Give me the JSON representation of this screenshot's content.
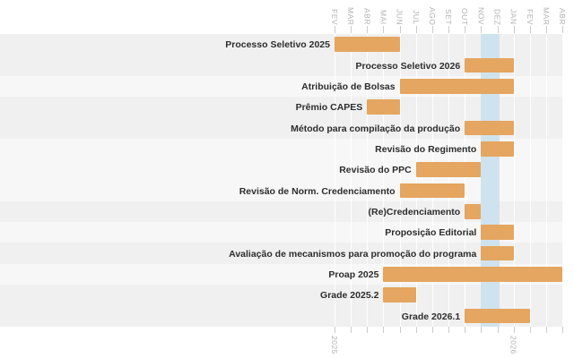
{
  "chart_data": {
    "type": "gantt",
    "title": "",
    "x_axis": {
      "months_top": [
        "FEV",
        "MAR",
        "ABR",
        "MAI",
        "JUN",
        "JUL",
        "AGO",
        "SET",
        "OUT",
        "NOV",
        "DEZ",
        "JAN",
        "FEV",
        "MAR",
        "ABR"
      ],
      "years_bottom": [
        {
          "label": "2025",
          "month_index": 0
        },
        {
          "label": "2026",
          "month_index": 11
        }
      ],
      "range": [
        "FEV 2025",
        "ABR 2026"
      ],
      "grid": true
    },
    "highlight_band": {
      "name": "current-period",
      "start_month_index": 9.0,
      "end_month_index": 10.15,
      "start": "NOV 2025",
      "end": "DEZ 2025"
    },
    "tasks": [
      {
        "label": "Processo Seletivo 2025",
        "start": "FEV 2025",
        "end": "JUN 2025",
        "start_index": 0,
        "end_index": 4,
        "row_shade": "dark"
      },
      {
        "label": "Processo Seletivo 2026",
        "start": "OUT 2025",
        "end": "JAN 2026",
        "start_index": 8,
        "end_index": 11,
        "row_shade": "dark"
      },
      {
        "label": "Atribuição de Bolsas",
        "start": "JUN 2025",
        "end": "JAN 2026",
        "start_index": 4,
        "end_index": 11,
        "row_shade": "light"
      },
      {
        "label": "Prêmio CAPES",
        "start": "ABR 2025",
        "end": "JUN 2025",
        "start_index": 2,
        "end_index": 4,
        "row_shade": "dark"
      },
      {
        "label": "Método para compilação da produção",
        "start": "OUT 2025",
        "end": "JAN 2026",
        "start_index": 8,
        "end_index": 11,
        "row_shade": "dark"
      },
      {
        "label": "Revisão do Regimento",
        "start": "NOV 2025",
        "end": "JAN 2026",
        "start_index": 9,
        "end_index": 11,
        "row_shade": "light"
      },
      {
        "label": "Revisão do PPC",
        "start": "JUL 2025",
        "end": "NOV 2025",
        "start_index": 5,
        "end_index": 9,
        "row_shade": "light"
      },
      {
        "label": "Revisão de Norm. Credenciamento",
        "start": "JUN 2025",
        "end": "OUT 2025",
        "start_index": 4,
        "end_index": 8,
        "row_shade": "light"
      },
      {
        "label": "(Re)Credenciamento",
        "start": "OUT 2025",
        "end": "NOV 2025",
        "start_index": 8,
        "end_index": 9,
        "row_shade": "dark"
      },
      {
        "label": "Proposição Editorial",
        "start": "NOV 2025",
        "end": "JAN 2026",
        "start_index": 9,
        "end_index": 11,
        "row_shade": "light"
      },
      {
        "label": "Avaliação de mecanismos para promoção do programa",
        "start": "NOV 2025",
        "end": "JAN 2026",
        "start_index": 9,
        "end_index": 11,
        "row_shade": "dark"
      },
      {
        "label": "Proap 2025",
        "start": "MAI 2025",
        "end": "ABR 2026",
        "start_index": 3,
        "end_index": 14,
        "row_shade": "light"
      },
      {
        "label": "Grade 2025.2",
        "start": "MAI 2025",
        "end": "JUL 2025",
        "start_index": 3,
        "end_index": 5,
        "row_shade": "dark"
      },
      {
        "label": "Grade 2026.1",
        "start": "OUT 2025",
        "end": "FEV 2026",
        "start_index": 8,
        "end_index": 12,
        "row_shade": "dark"
      }
    ],
    "colors": {
      "bar": "#e4a660",
      "highlight_band": "#cfe3ee",
      "row_dark": "#f0f0f0",
      "row_light": "#f7f7f7",
      "gridline": "rgba(255,255,255,0.9)",
      "tick": "#cccccc",
      "axis_text": "#b1b1b1",
      "task_text": "#2d2d2d",
      "background": "#ffffff"
    }
  }
}
